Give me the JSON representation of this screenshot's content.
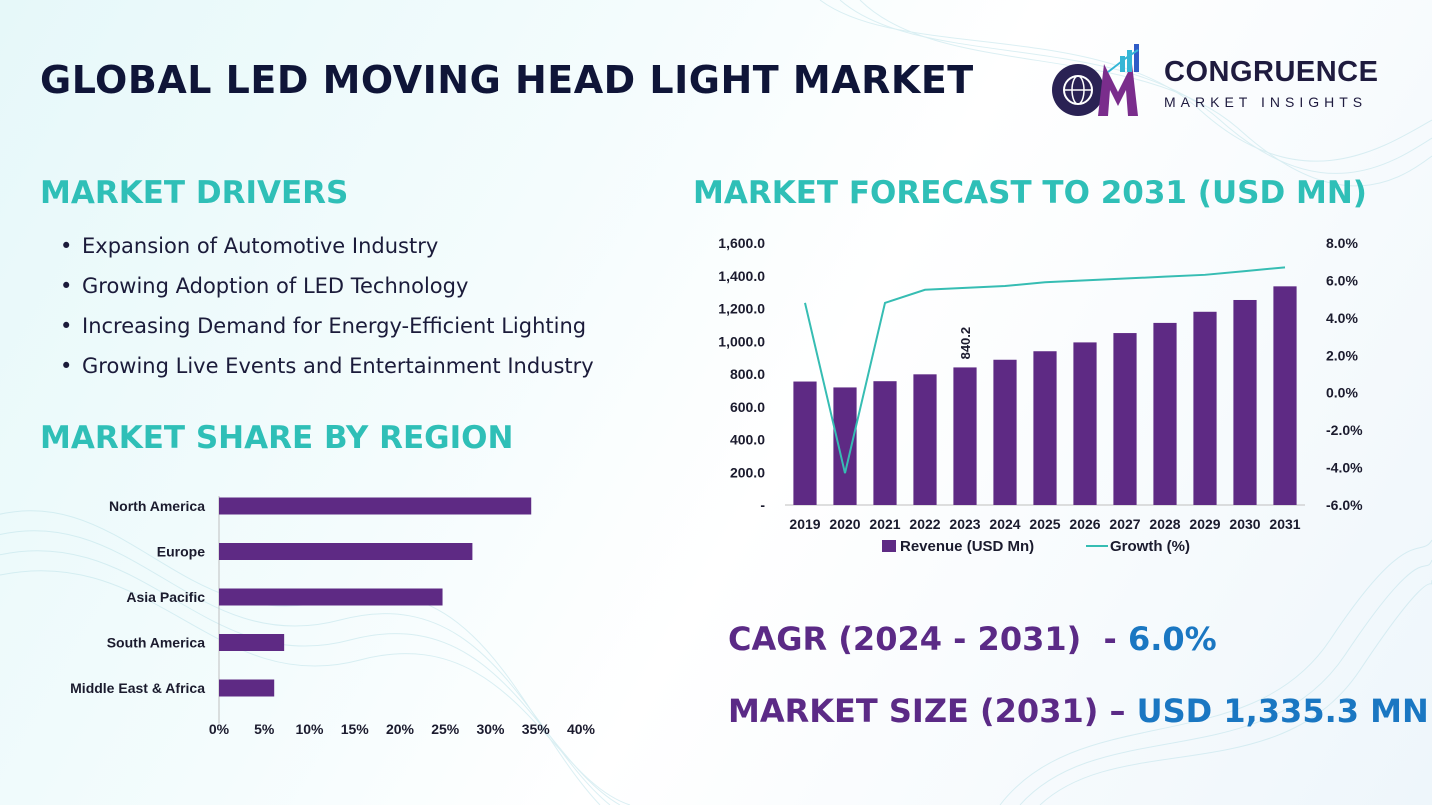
{
  "title": "GLOBAL LED MOVING HEAD LIGHT MARKET",
  "logo": {
    "name": "CONGRUENCE",
    "subtitle": "MARKET INSIGHTS"
  },
  "drivers": {
    "heading": "MARKET DRIVERS",
    "items": [
      "Expansion of Automotive Industry",
      "Growing Adoption of LED Technology",
      "Increasing Demand for Energy-Efficient Lighting",
      "Growing Live Events and Entertainment Industry"
    ]
  },
  "share": {
    "heading": "MARKET SHARE BY REGION"
  },
  "forecast": {
    "heading": "MARKET FORECAST TO 2031 (USD MN)"
  },
  "stats": {
    "cagr_label": "CAGR (2024 - 2031)",
    "cagr_sep": "  - ",
    "cagr_value": "6.0%",
    "size_label": "MARKET SIZE (2031) – ",
    "size_value": "USD 1,335.3 MN"
  },
  "colors": {
    "bar": "#5e2a84",
    "line": "#36bdb3",
    "heading": "#2fbfb7",
    "title": "#0f1538",
    "stat_value": "#1a77c2"
  },
  "chart_data": [
    {
      "type": "bar",
      "orientation": "horizontal",
      "categories": [
        "North America",
        "Europe",
        "Asia Pacific",
        "South America",
        "Middle East & Africa"
      ],
      "values": [
        34.5,
        28.0,
        24.7,
        7.2,
        6.1
      ],
      "xlim": [
        0,
        40
      ],
      "x_ticks": [
        "0%",
        "5%",
        "10%",
        "15%",
        "20%",
        "25%",
        "30%",
        "35%",
        "40%"
      ],
      "grid": false
    },
    {
      "type": "bar",
      "categories": [
        "2019",
        "2020",
        "2021",
        "2022",
        "2023",
        "2024",
        "2025",
        "2026",
        "2027",
        "2028",
        "2029",
        "2030",
        "2031"
      ],
      "series": [
        {
          "name": "Revenue (USD Mn)",
          "type": "bar",
          "axis": "left",
          "values": [
            754,
            718,
            756,
            798,
            840.2,
            887,
            939,
            993,
            1050,
            1112,
            1180,
            1252,
            1335.3
          ]
        },
        {
          "name": "Growth (%)",
          "type": "line",
          "axis": "right",
          "values": [
            4.8,
            -4.3,
            4.8,
            5.5,
            5.6,
            5.7,
            5.9,
            6.0,
            6.1,
            6.2,
            6.3,
            6.5,
            6.7
          ]
        }
      ],
      "data_labels": [
        {
          "index": 4,
          "text": "840.2"
        }
      ],
      "ylim_left": [
        0,
        1600
      ],
      "ylim_right": [
        -6,
        8
      ],
      "y_ticks_left": [
        "-",
        "200.0",
        "400.0",
        "600.0",
        "800.0",
        "1,000.0",
        "1,200.0",
        "1,400.0",
        "1,600.0"
      ],
      "y_ticks_right": [
        "-6.0%",
        "-4.0%",
        "-2.0%",
        "0.0%",
        "2.0%",
        "4.0%",
        "6.0%",
        "8.0%"
      ],
      "legend": "bottom",
      "grid": false
    }
  ]
}
